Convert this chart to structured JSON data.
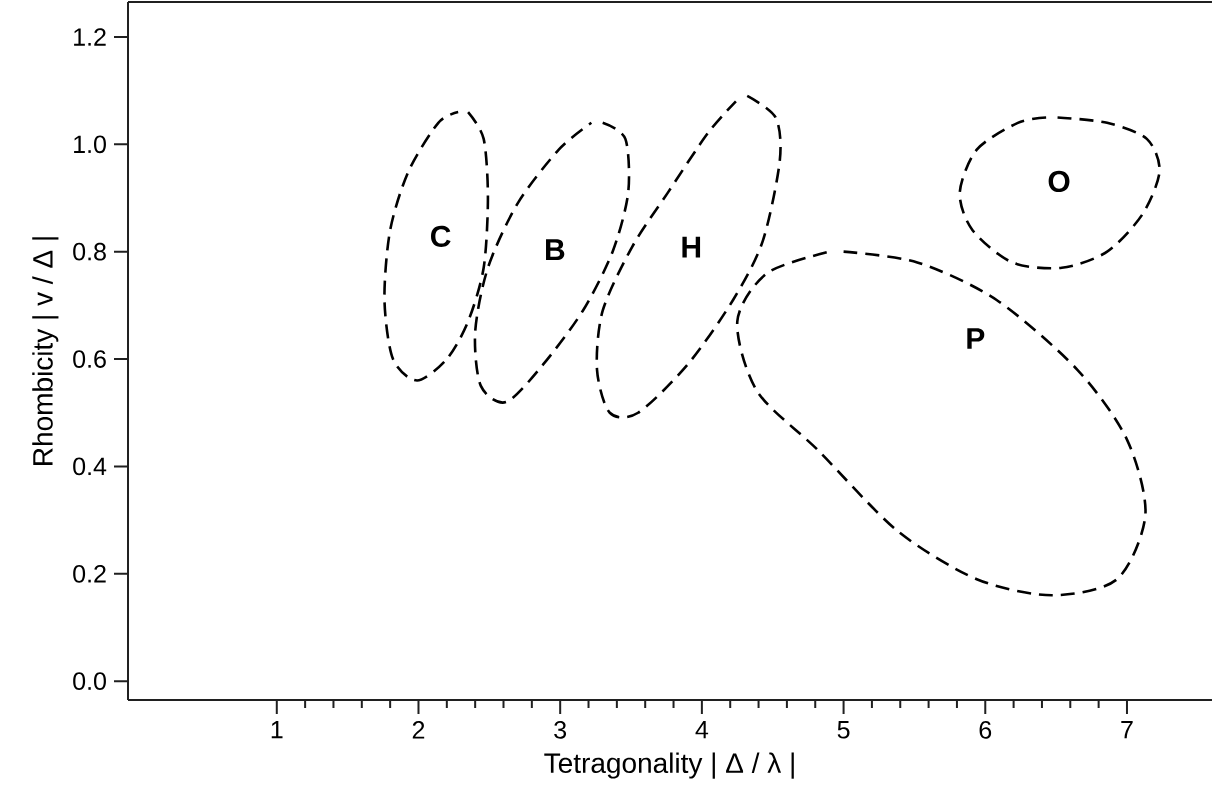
{
  "chart_data": {
    "type": "line",
    "xlabel": "Tetragonality | Δ / λ |",
    "ylabel": "Rhombicity | v / Δ |",
    "xlim": [
      -0.05,
      7.6
    ],
    "ylim": [
      -0.035,
      1.265
    ],
    "xticks": [
      1,
      2,
      3,
      4,
      5,
      6,
      7
    ],
    "yticks": [
      {
        "value": 0,
        "label": "0.0"
      },
      {
        "value": 0.2,
        "label": "0.2"
      },
      {
        "value": 0.4,
        "label": "0.4"
      },
      {
        "value": 0.6,
        "label": "0.6"
      },
      {
        "value": 0.8,
        "label": "0.8"
      },
      {
        "value": 1.0,
        "label": "1.0"
      },
      {
        "value": 1.2,
        "label": "1.2"
      }
    ],
    "grid": false,
    "legend": false,
    "marker": "none",
    "line_style": "dashed",
    "series": [
      {
        "name": "C",
        "color": "#000000",
        "x": [
          2.35,
          2.46,
          2.49,
          2.46,
          2.35,
          2.2,
          1.99,
          1.82,
          1.76,
          1.8,
          1.93,
          2.14,
          2.28
        ],
        "values": [
          1.06,
          1.01,
          0.9,
          0.77,
          0.67,
          0.6,
          0.56,
          0.6,
          0.71,
          0.84,
          0.95,
          1.04,
          1.06
        ]
      },
      {
        "name": "B",
        "color": "#000000",
        "x": [
          3.3,
          3.46,
          3.48,
          3.37,
          3.16,
          2.88,
          2.62,
          2.44,
          2.4,
          2.49,
          2.7,
          2.99,
          3.22
        ],
        "values": [
          1.04,
          1.01,
          0.91,
          0.8,
          0.69,
          0.59,
          0.52,
          0.55,
          0.65,
          0.77,
          0.89,
          0.99,
          1.04
        ]
      },
      {
        "name": "H",
        "color": "#000000",
        "x": [
          4.32,
          4.52,
          4.55,
          4.43,
          4.22,
          3.9,
          3.55,
          3.35,
          3.26,
          3.3,
          3.51,
          3.76,
          4.04,
          4.24
        ],
        "values": [
          1.09,
          1.05,
          0.97,
          0.82,
          0.71,
          0.59,
          0.5,
          0.5,
          0.58,
          0.69,
          0.81,
          0.91,
          1.02,
          1.08
        ]
      },
      {
        "name": "P",
        "color": "#000000",
        "x": [
          5.0,
          5.52,
          6.08,
          6.65,
          7.0,
          7.13,
          6.93,
          6.47,
          5.94,
          5.38,
          4.82,
          4.39,
          4.25,
          4.46,
          4.9
        ],
        "values": [
          0.8,
          0.78,
          0.71,
          0.58,
          0.45,
          0.31,
          0.19,
          0.16,
          0.19,
          0.28,
          0.43,
          0.54,
          0.67,
          0.76,
          0.8
        ]
      },
      {
        "name": "O",
        "color": "#000000",
        "x": [
          6.51,
          6.86,
          7.14,
          7.23,
          7.11,
          6.86,
          6.54,
          6.19,
          5.91,
          5.82,
          5.94,
          6.23,
          6.43
        ],
        "values": [
          1.05,
          1.04,
          1.01,
          0.95,
          0.87,
          0.8,
          0.77,
          0.78,
          0.84,
          0.91,
          0.99,
          1.04,
          1.05
        ]
      }
    ]
  }
}
